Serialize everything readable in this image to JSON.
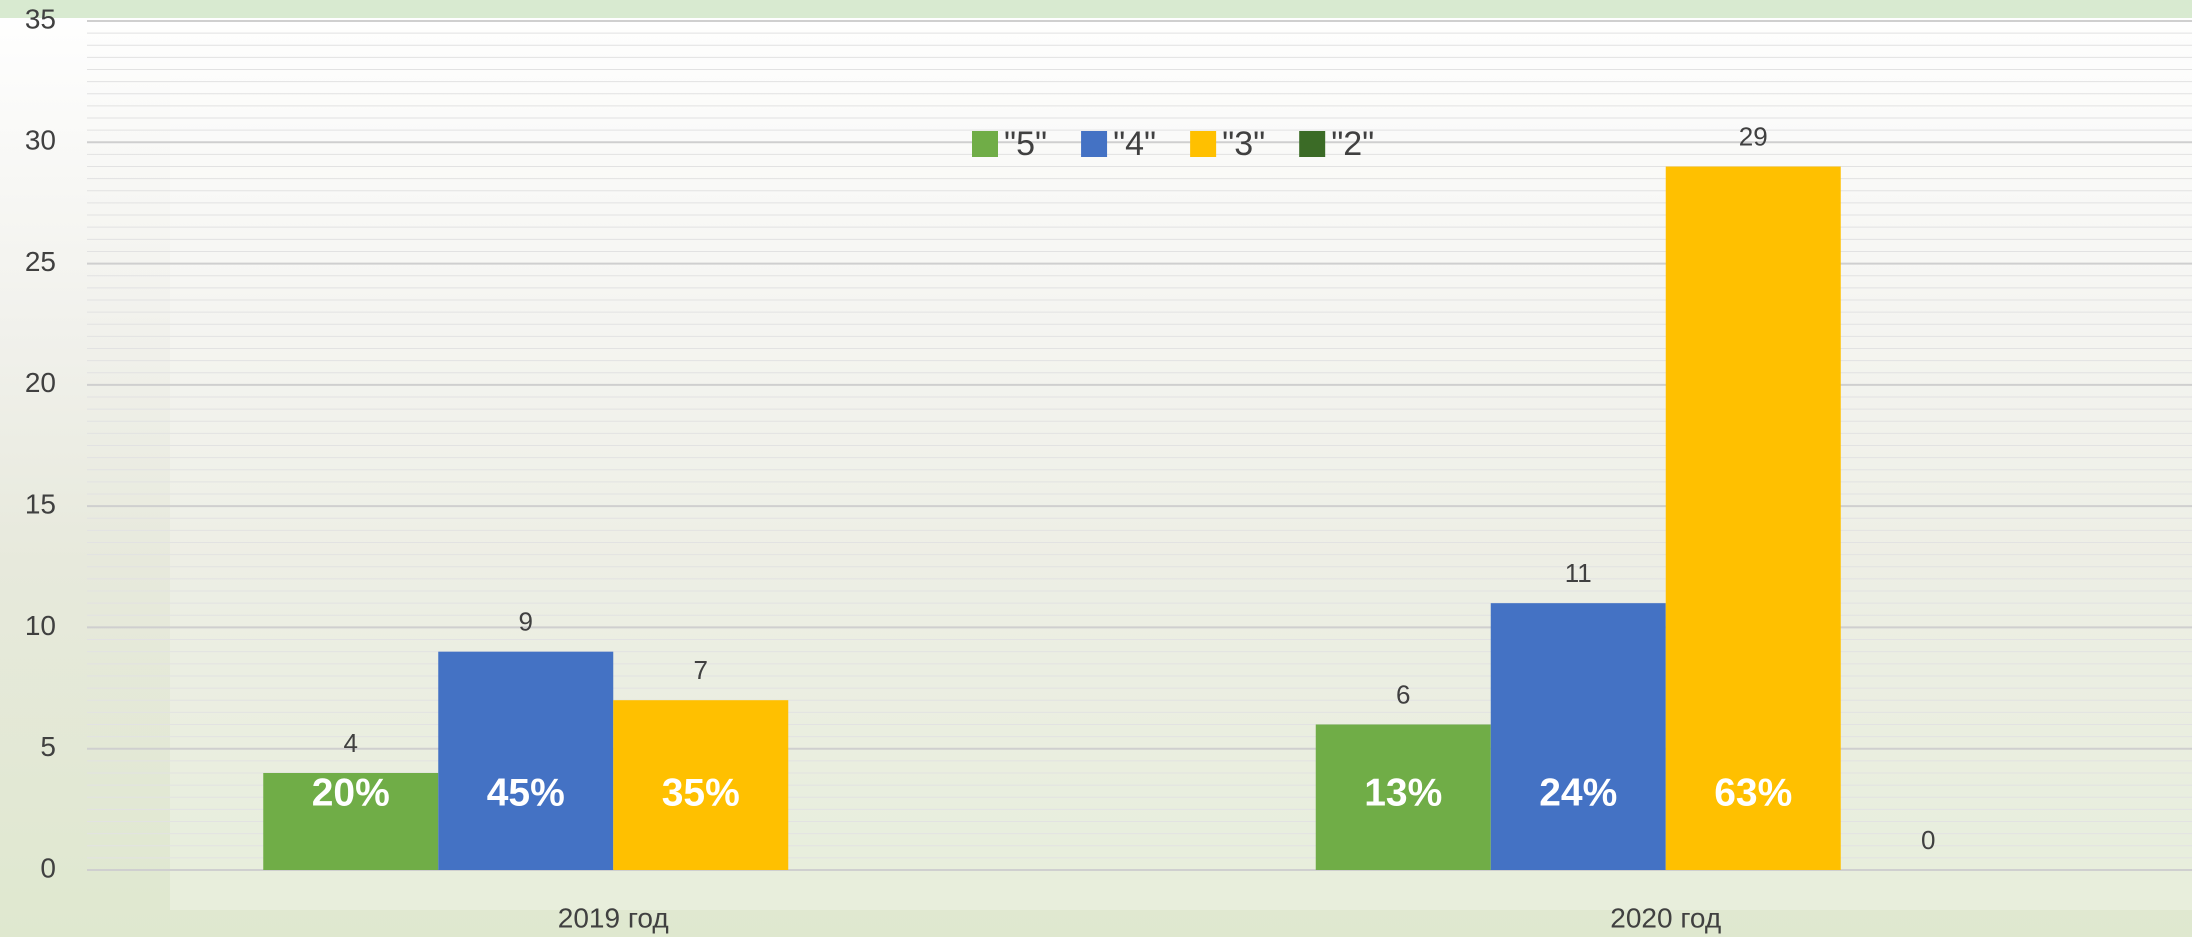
{
  "chart_data": {
    "type": "bar",
    "categories": [
      "2019 год",
      "2020 год"
    ],
    "series": [
      {
        "name": "\"5\"",
        "color": "#70ad47",
        "values": [
          4,
          6
        ],
        "share_labels": [
          "20%",
          "13%"
        ]
      },
      {
        "name": "\"4\"",
        "color": "#4472c4",
        "values": [
          9,
          11
        ],
        "share_labels": [
          "45%",
          "24%"
        ]
      },
      {
        "name": "\"3\"",
        "color": "#ffc000",
        "values": [
          7,
          29
        ],
        "share_labels": [
          "35%",
          "63%"
        ]
      },
      {
        "name": "\"2\"",
        "color": "#3b6b26",
        "values": [
          null,
          0
        ]
      }
    ],
    "ylim": [
      0,
      35
    ],
    "yticks": [
      0,
      5,
      10,
      15,
      20,
      25,
      30,
      35
    ],
    "grid": true,
    "legend": "top"
  }
}
